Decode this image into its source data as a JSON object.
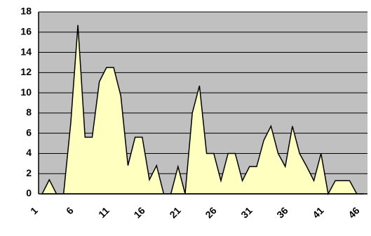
{
  "chart_data": {
    "type": "area",
    "categories": [
      "1",
      null,
      null,
      null,
      null,
      "6",
      null,
      null,
      null,
      null,
      "11",
      null,
      null,
      null,
      null,
      "16",
      null,
      null,
      null,
      null,
      "21",
      null,
      null,
      null,
      null,
      "26",
      null,
      null,
      null,
      null,
      "31",
      null,
      null,
      null,
      null,
      "36",
      null,
      null,
      null,
      null,
      "41",
      null,
      null,
      null,
      null,
      "46"
    ],
    "values": [
      0,
      1.4,
      0,
      0,
      7,
      16.7,
      5.6,
      5.6,
      11.1,
      12.5,
      12.5,
      9.7,
      2.8,
      5.6,
      5.6,
      1.4,
      2.8,
      0,
      0,
      2.7,
      0,
      8,
      10.7,
      4,
      4,
      1.3,
      4,
      4,
      1.3,
      2.7,
      2.7,
      5.3,
      6.7,
      4,
      2.7,
      6.7,
      4,
      2.7,
      1.3,
      4,
      0,
      1.3,
      1.3,
      1.3,
      0,
      0
    ],
    "color": "#ffffc0",
    "ylim": [
      0,
      18
    ],
    "yticks": [
      0,
      2,
      4,
      6,
      8,
      10,
      12,
      14,
      16,
      18
    ],
    "grid": true
  }
}
